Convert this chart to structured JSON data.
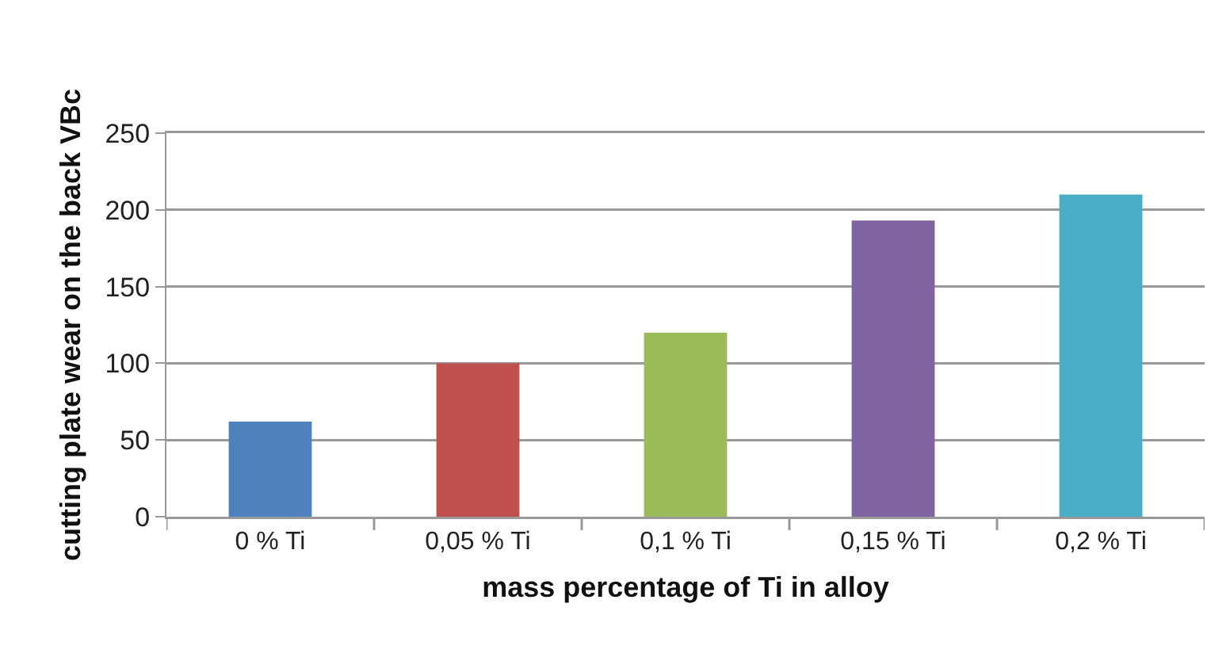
{
  "chart_data": {
    "type": "bar",
    "xlabel": "mass percentage of Ti in alloy",
    "ylabel": "cutting plate wear on the back VBc",
    "categories": [
      "0 % Ti",
      "0,05 % Ti",
      "0,1 % Ti",
      "0,15 % Ti",
      "0,2 % Ti"
    ],
    "values": [
      62,
      100,
      120,
      193,
      210
    ],
    "colors": [
      "#4f81bd",
      "#c0504d",
      "#9bbb59",
      "#8064a2",
      "#4bacc6"
    ],
    "ylim": [
      0,
      250
    ],
    "yticks": [
      0,
      50,
      100,
      150,
      200,
      250
    ],
    "grid": "y"
  }
}
